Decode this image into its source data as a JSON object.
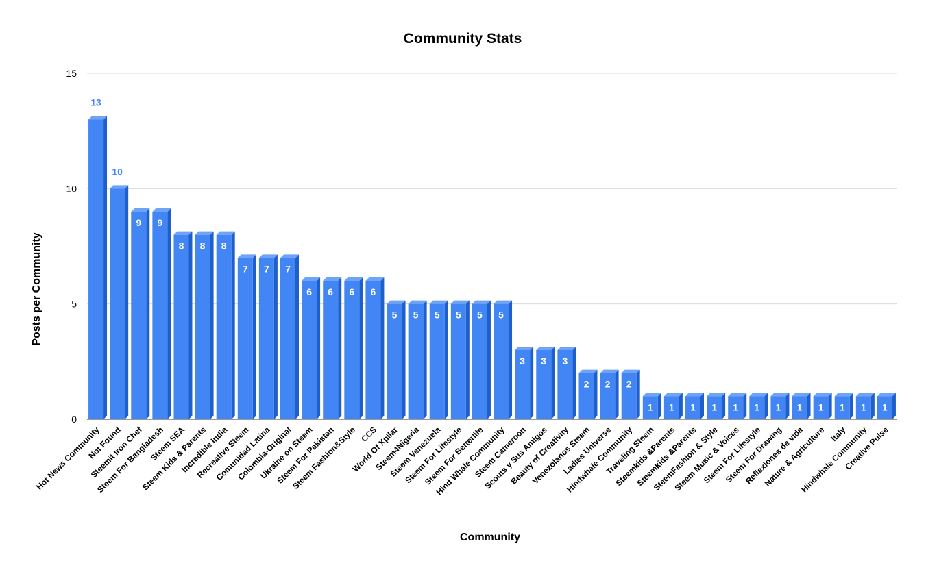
{
  "chart_data": {
    "type": "bar",
    "title": "Community Stats",
    "xlabel": "Community",
    "ylabel": "Posts per Community",
    "ylim": [
      0,
      15
    ],
    "yticks": [
      0,
      5,
      10,
      15
    ],
    "grid": true,
    "bar_color": "#4285f4",
    "bar_side_color": "#1f5fc9",
    "bar_top_color": "#6fa3f7",
    "categories": [
      "Hot News Community",
      "Not Found",
      "Steemit Iron Chef",
      "Steem For Bangladesh",
      "Steem SEA",
      "Steem Kids & Parents",
      "Incredible India",
      "Recreative Steem",
      "Comunidad Latina",
      "Colombia-Original",
      "Ukraine on Steem",
      "Steem For Pakistan",
      "Steem Fashion&Style",
      "CCS",
      "World Of Xpilar",
      "Steem4Nigeria",
      "Steem Venezuela",
      "Steem For Lifestyle",
      "Steem For Betterlife",
      "Hind Whale Community",
      "Steem Cameroon",
      "Scouts y Sus Amigos",
      "Beauty of Creativity",
      "Venezolanos Steem",
      "Ladies Universe",
      "Hindwhale Community",
      "Traveling Steem",
      "Steemkids &Parents",
      "Steemkids &Parents",
      "SteemFashion & Style",
      "Steem Music & Voices",
      "Steem For Lifestyle",
      "Steem For Drawing",
      "Reflexiones de vida",
      "Nature & Agriculture",
      "Italy",
      "Hindwhale Community",
      "Creative Pulse"
    ],
    "values": [
      13,
      10,
      9,
      9,
      8,
      8,
      8,
      7,
      7,
      7,
      6,
      6,
      6,
      6,
      5,
      5,
      5,
      5,
      5,
      5,
      3,
      3,
      3,
      2,
      2,
      2,
      1,
      1,
      1,
      1,
      1,
      1,
      1,
      1,
      1,
      1,
      1,
      1
    ]
  }
}
